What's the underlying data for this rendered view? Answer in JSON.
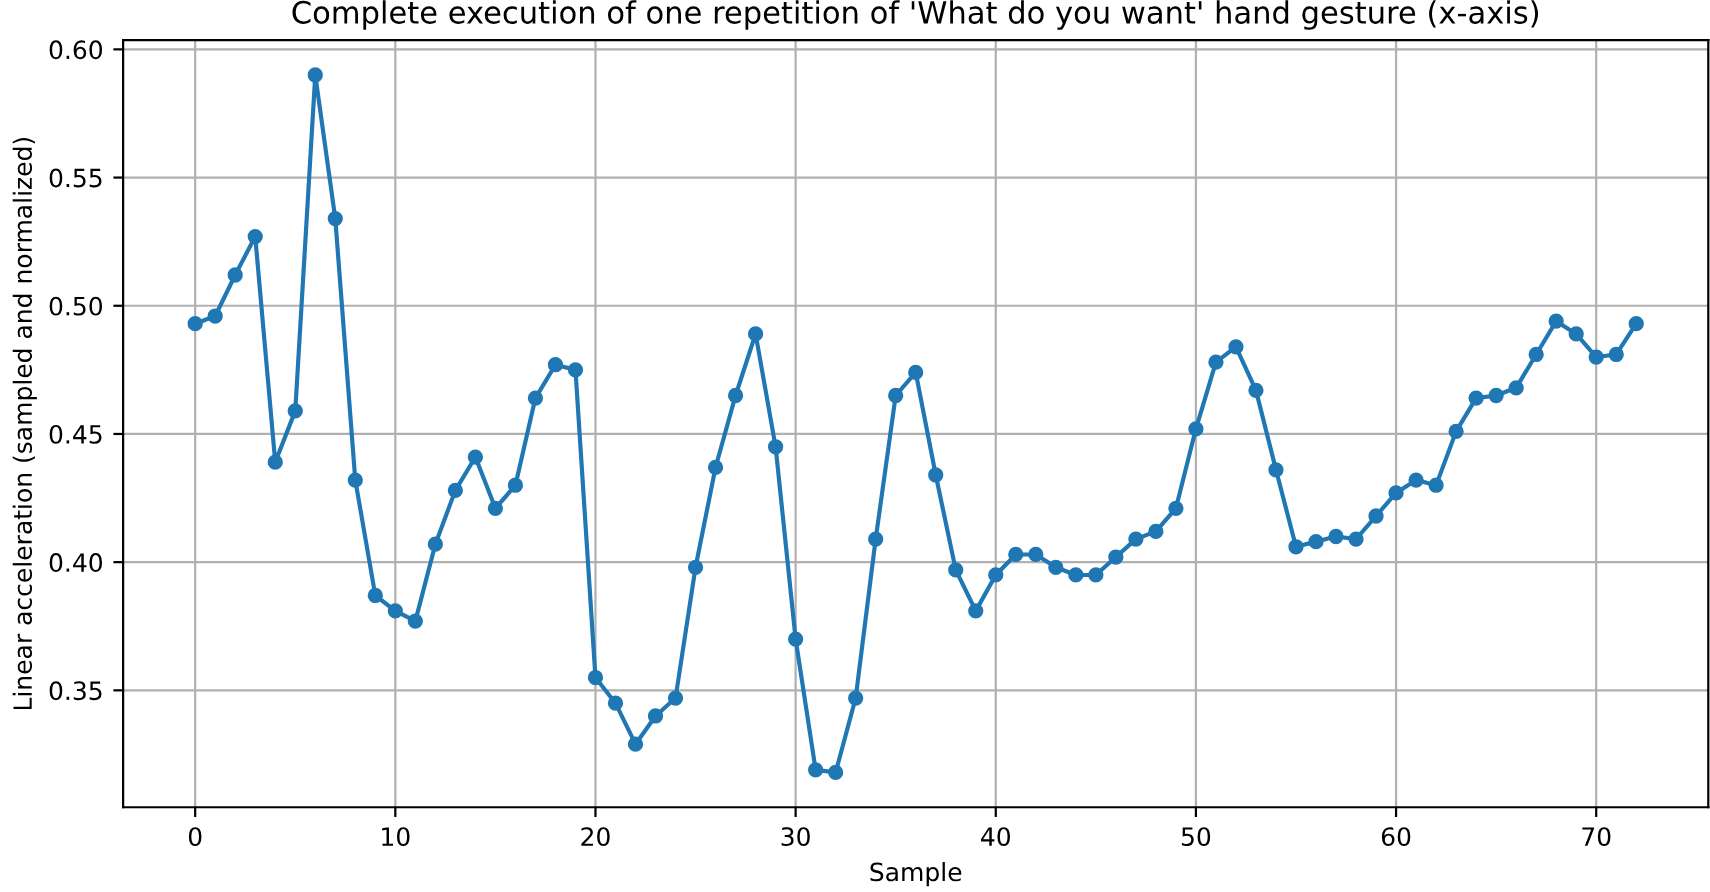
{
  "chart_data": {
    "type": "line",
    "title": "Complete execution of one repetition of 'What do you want' hand gesture (x-axis)",
    "xlabel": "Sample",
    "ylabel": "Linear acceleration (sampled and normalized)",
    "x": [
      0,
      1,
      2,
      3,
      4,
      5,
      6,
      7,
      8,
      9,
      10,
      11,
      12,
      13,
      14,
      15,
      16,
      17,
      18,
      19,
      20,
      21,
      22,
      23,
      24,
      25,
      26,
      27,
      28,
      29,
      30,
      31,
      32,
      33,
      34,
      35,
      36,
      37,
      38,
      39,
      40,
      41,
      42,
      43,
      44,
      45,
      46,
      47,
      48,
      49,
      50,
      51,
      52,
      53,
      54,
      55,
      56,
      57,
      58,
      59,
      60,
      61,
      62,
      63,
      64,
      65,
      66,
      67,
      68,
      69,
      70,
      71,
      72
    ],
    "series": [
      {
        "color": "#1f77b4",
        "values": [
          0.493,
          0.496,
          0.512,
          0.527,
          0.439,
          0.459,
          0.59,
          0.534,
          0.432,
          0.387,
          0.381,
          0.377,
          0.407,
          0.428,
          0.441,
          0.421,
          0.43,
          0.464,
          0.477,
          0.475,
          0.355,
          0.345,
          0.329,
          0.34,
          0.347,
          0.398,
          0.437,
          0.465,
          0.489,
          0.445,
          0.37,
          0.319,
          0.318,
          0.347,
          0.409,
          0.465,
          0.474,
          0.434,
          0.397,
          0.381,
          0.395,
          0.403,
          0.403,
          0.398,
          0.395,
          0.395,
          0.402,
          0.409,
          0.412,
          0.421,
          0.452,
          0.478,
          0.484,
          0.467,
          0.436,
          0.406,
          0.408,
          0.41,
          0.409,
          0.418,
          0.427,
          0.432,
          0.43,
          0.451,
          0.464,
          0.465,
          0.468,
          0.481,
          0.494,
          0.489,
          0.48,
          0.481,
          0.493
        ]
      }
    ],
    "xlim": [
      -3.6,
      75.6
    ],
    "ylim": [
      0.3044,
      0.6036
    ],
    "xticks": [
      0,
      10,
      20,
      30,
      40,
      50,
      60,
      70
    ],
    "yticks": [
      {
        "value": 0.35,
        "label": "0.35"
      },
      {
        "value": 0.4,
        "label": "0.40"
      },
      {
        "value": 0.45,
        "label": "0.45"
      },
      {
        "value": 0.5,
        "label": "0.50"
      },
      {
        "value": 0.55,
        "label": "0.55"
      },
      {
        "value": 0.6,
        "label": "0.60"
      }
    ],
    "grid": true,
    "marker": "circle",
    "line_style": "solid",
    "legend": false
  }
}
